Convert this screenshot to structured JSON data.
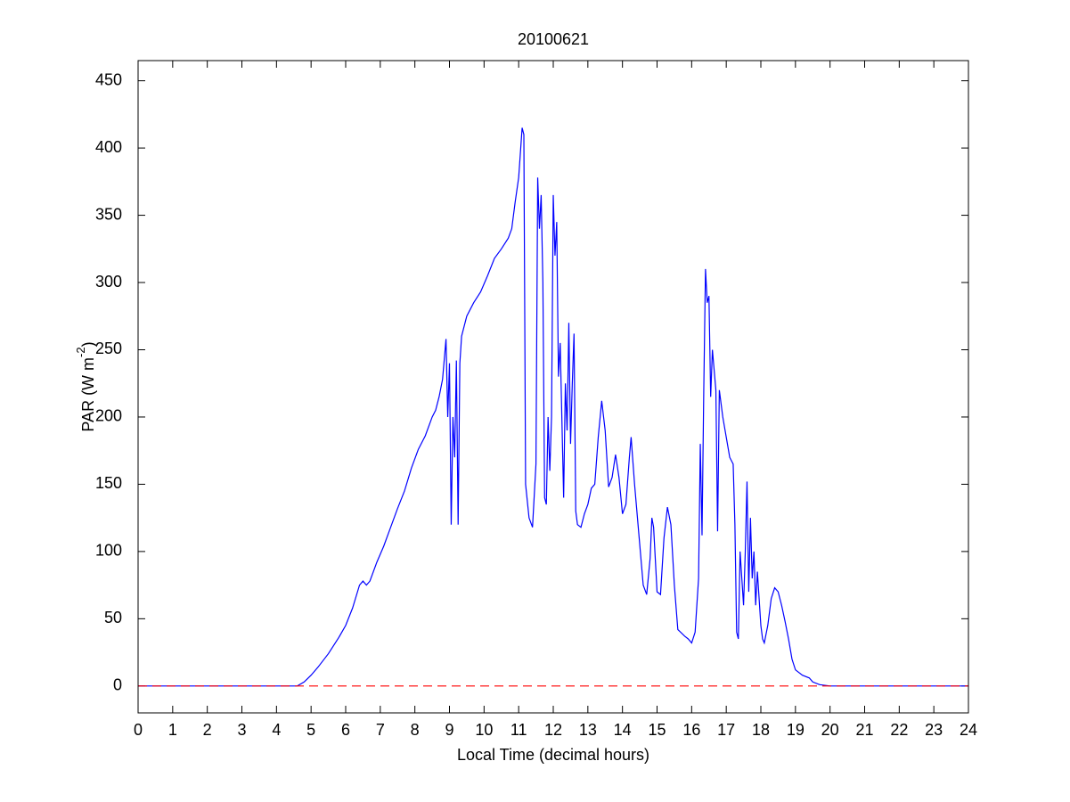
{
  "chart_data": {
    "type": "line",
    "title": "20100621",
    "xlabel": "Local Time (decimal hours)",
    "ylabel": [
      "PAR (W m",
      "-2",
      ")"
    ],
    "xlim": [
      0,
      24
    ],
    "ylim": [
      -20,
      465
    ],
    "xticks": [
      0,
      1,
      2,
      3,
      4,
      5,
      6,
      7,
      8,
      9,
      10,
      11,
      12,
      13,
      14,
      15,
      16,
      17,
      18,
      19,
      20,
      21,
      22,
      23,
      24
    ],
    "yticks": [
      0,
      50,
      100,
      150,
      200,
      250,
      300,
      350,
      400,
      450
    ],
    "reference_line": {
      "value": 0,
      "color": "#ff0000",
      "style": "dashed"
    },
    "series": [
      {
        "color": "#0000ff",
        "x": [
          0,
          4.6,
          4.8,
          5,
          5.2,
          5.5,
          5.8,
          6,
          6.2,
          6.4,
          6.5,
          6.6,
          6.7,
          6.9,
          7.1,
          7.3,
          7.5,
          7.7,
          7.9,
          8.1,
          8.3,
          8.5,
          8.6,
          8.7,
          8.8,
          8.9,
          8.95,
          9.0,
          9.05,
          9.1,
          9.15,
          9.2,
          9.25,
          9.3,
          9.35,
          9.5,
          9.7,
          9.9,
          10.1,
          10.3,
          10.5,
          10.7,
          10.8,
          10.9,
          11.0,
          11.1,
          11.15,
          11.2,
          11.3,
          11.4,
          11.5,
          11.55,
          11.6,
          11.65,
          11.7,
          11.75,
          11.8,
          11.85,
          11.9,
          11.95,
          12.0,
          12.05,
          12.1,
          12.15,
          12.2,
          12.3,
          12.35,
          12.4,
          12.45,
          12.5,
          12.55,
          12.6,
          12.65,
          12.7,
          12.8,
          12.9,
          13.0,
          13.1,
          13.2,
          13.3,
          13.4,
          13.5,
          13.6,
          13.7,
          13.8,
          13.9,
          14.0,
          14.1,
          14.2,
          14.25,
          14.35,
          14.5,
          14.6,
          14.7,
          14.8,
          14.85,
          14.9,
          15.0,
          15.1,
          15.2,
          15.3,
          15.4,
          15.5,
          15.6,
          15.8,
          15.9,
          16.0,
          16.1,
          16.2,
          16.25,
          16.3,
          16.35,
          16.4,
          16.45,
          16.5,
          16.55,
          16.6,
          16.65,
          16.7,
          16.75,
          16.8,
          16.9,
          17.0,
          17.1,
          17.2,
          17.25,
          17.3,
          17.35,
          17.4,
          17.5,
          17.55,
          17.6,
          17.65,
          17.7,
          17.75,
          17.8,
          17.85,
          17.9,
          18.0,
          18.05,
          18.1,
          18.2,
          18.3,
          18.4,
          18.5,
          18.6,
          18.7,
          18.8,
          18.9,
          19.0,
          19.2,
          19.4,
          19.5,
          19.7,
          20.0,
          24
        ],
        "values": [
          0,
          0,
          3,
          8,
          14,
          24,
          36,
          45,
          58,
          75,
          78,
          75,
          78,
          92,
          104,
          118,
          132,
          145,
          162,
          176,
          186,
          200,
          205,
          215,
          228,
          258,
          200,
          240,
          120,
          200,
          170,
          242,
          120,
          240,
          260,
          275,
          285,
          293,
          305,
          318,
          325,
          333,
          340,
          360,
          378,
          415,
          410,
          150,
          125,
          118,
          165,
          378,
          340,
          365,
          300,
          140,
          135,
          200,
          160,
          200,
          365,
          320,
          345,
          230,
          255,
          140,
          225,
          190,
          270,
          180,
          225,
          262,
          130,
          120,
          118,
          128,
          135,
          147,
          150,
          185,
          212,
          190,
          148,
          155,
          172,
          155,
          128,
          135,
          170,
          185,
          150,
          105,
          75,
          68,
          95,
          125,
          118,
          70,
          68,
          110,
          133,
          120,
          75,
          42,
          37,
          35,
          32,
          40,
          80,
          180,
          112,
          220,
          310,
          285,
          290,
          215,
          250,
          235,
          220,
          115,
          220,
          200,
          185,
          170,
          165,
          120,
          40,
          35,
          100,
          60,
          100,
          152,
          70,
          125,
          80,
          100,
          60,
          85,
          45,
          35,
          32,
          45,
          65,
          73,
          70,
          60,
          48,
          35,
          20,
          12,
          8,
          6,
          3,
          1,
          0,
          0
        ]
      }
    ]
  }
}
